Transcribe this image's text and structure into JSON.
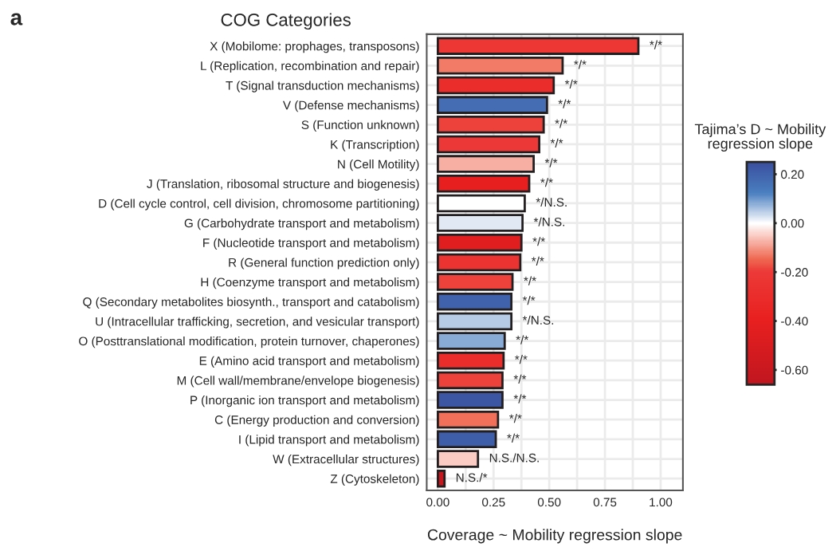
{
  "chart_data": {
    "type": "bar",
    "orientation": "horizontal",
    "ylabel": "COG Categories",
    "xlabel": "Coverage ~ Mobility regression slope",
    "clabel": "Tajima’s D ~ Mobility\nregression slope",
    "annotations": [
      "a"
    ],
    "categories": [
      "X (Mobilome: prophages, transposons)",
      "L (Replication, recombination and repair)",
      "T (Signal transduction mechanisms)",
      "V (Defense mechanisms)",
      "S (Function unknown)",
      "K (Transcription)",
      "N (Cell Motility)",
      "J (Translation, ribosomal structure and biogenesis)",
      "D (Cell cycle control, cell division, chromosome partitioning)",
      "G (Carbohydrate transport and metabolism)",
      "F (Nucleotide transport and metabolism)",
      "R (General function prediction only)",
      "H (Coenzyme transport and metabolism)",
      "Q (Secondary metabolites biosynth., transport and catabolism)",
      "U (Intracellular trafficking, secretion, and vesicular transport)",
      "O (Posttranslational modification, protein turnover, chaperones)",
      "E (Amino acid transport and metabolism)",
      "M (Cell wall/membrane/envelope biogenesis)",
      "P (Inorganic ion transport and metabolism)",
      "C (Energy production and conversion)",
      "I (Lipid transport and metabolism)",
      "W (Extracellular structures)",
      "Z (Cytoskeleton)"
    ],
    "values": [
      0.9,
      0.56,
      0.52,
      0.49,
      0.475,
      0.455,
      0.43,
      0.41,
      0.39,
      0.38,
      0.375,
      0.37,
      0.335,
      0.33,
      0.33,
      0.3,
      0.295,
      0.29,
      0.29,
      0.27,
      0.26,
      0.18,
      0.03
    ],
    "cvalues": [
      -0.22,
      -0.13,
      -0.3,
      0.17,
      -0.19,
      -0.21,
      -0.08,
      -0.4,
      0.0,
      0.02,
      -0.45,
      -0.25,
      -0.19,
      0.2,
      0.05,
      0.08,
      -0.3,
      -0.19,
      0.23,
      -0.14,
      0.21,
      -0.05,
      -0.62
    ],
    "value_labels": [
      "*/*",
      "*/*",
      "*/*",
      "*/*",
      "*/*",
      "*/*",
      "*/*",
      "*/*",
      "*/N.S.",
      "*/N.S.",
      "*/*",
      "*/*",
      "*/*",
      "*/*",
      "*/N.S.",
      "*/*",
      "*/*",
      "*/*",
      "*/*",
      "*/*",
      "*/*",
      "N.S./N.S.",
      "N.S./*"
    ],
    "xlim": [
      -0.05,
      1.1
    ],
    "xticks": [
      {
        "value": 0,
        "label": "0.00"
      },
      {
        "value": 0.25,
        "label": "0.25"
      },
      {
        "value": 0.5,
        "label": "0.50"
      },
      {
        "value": 0.75,
        "label": "0.75"
      },
      {
        "value": 1.0,
        "label": "1.00"
      }
    ],
    "clim": [
      -0.66,
      0.25
    ],
    "cticks": [
      {
        "value": 0.2,
        "label": "0.20"
      },
      {
        "value": 0.0,
        "label": "0.00"
      },
      {
        "value": -0.2,
        "label": "-0.20"
      },
      {
        "value": -0.4,
        "label": "-0.40"
      },
      {
        "value": -0.6,
        "label": "-0.60"
      }
    ],
    "grid": true,
    "legend": false
  }
}
